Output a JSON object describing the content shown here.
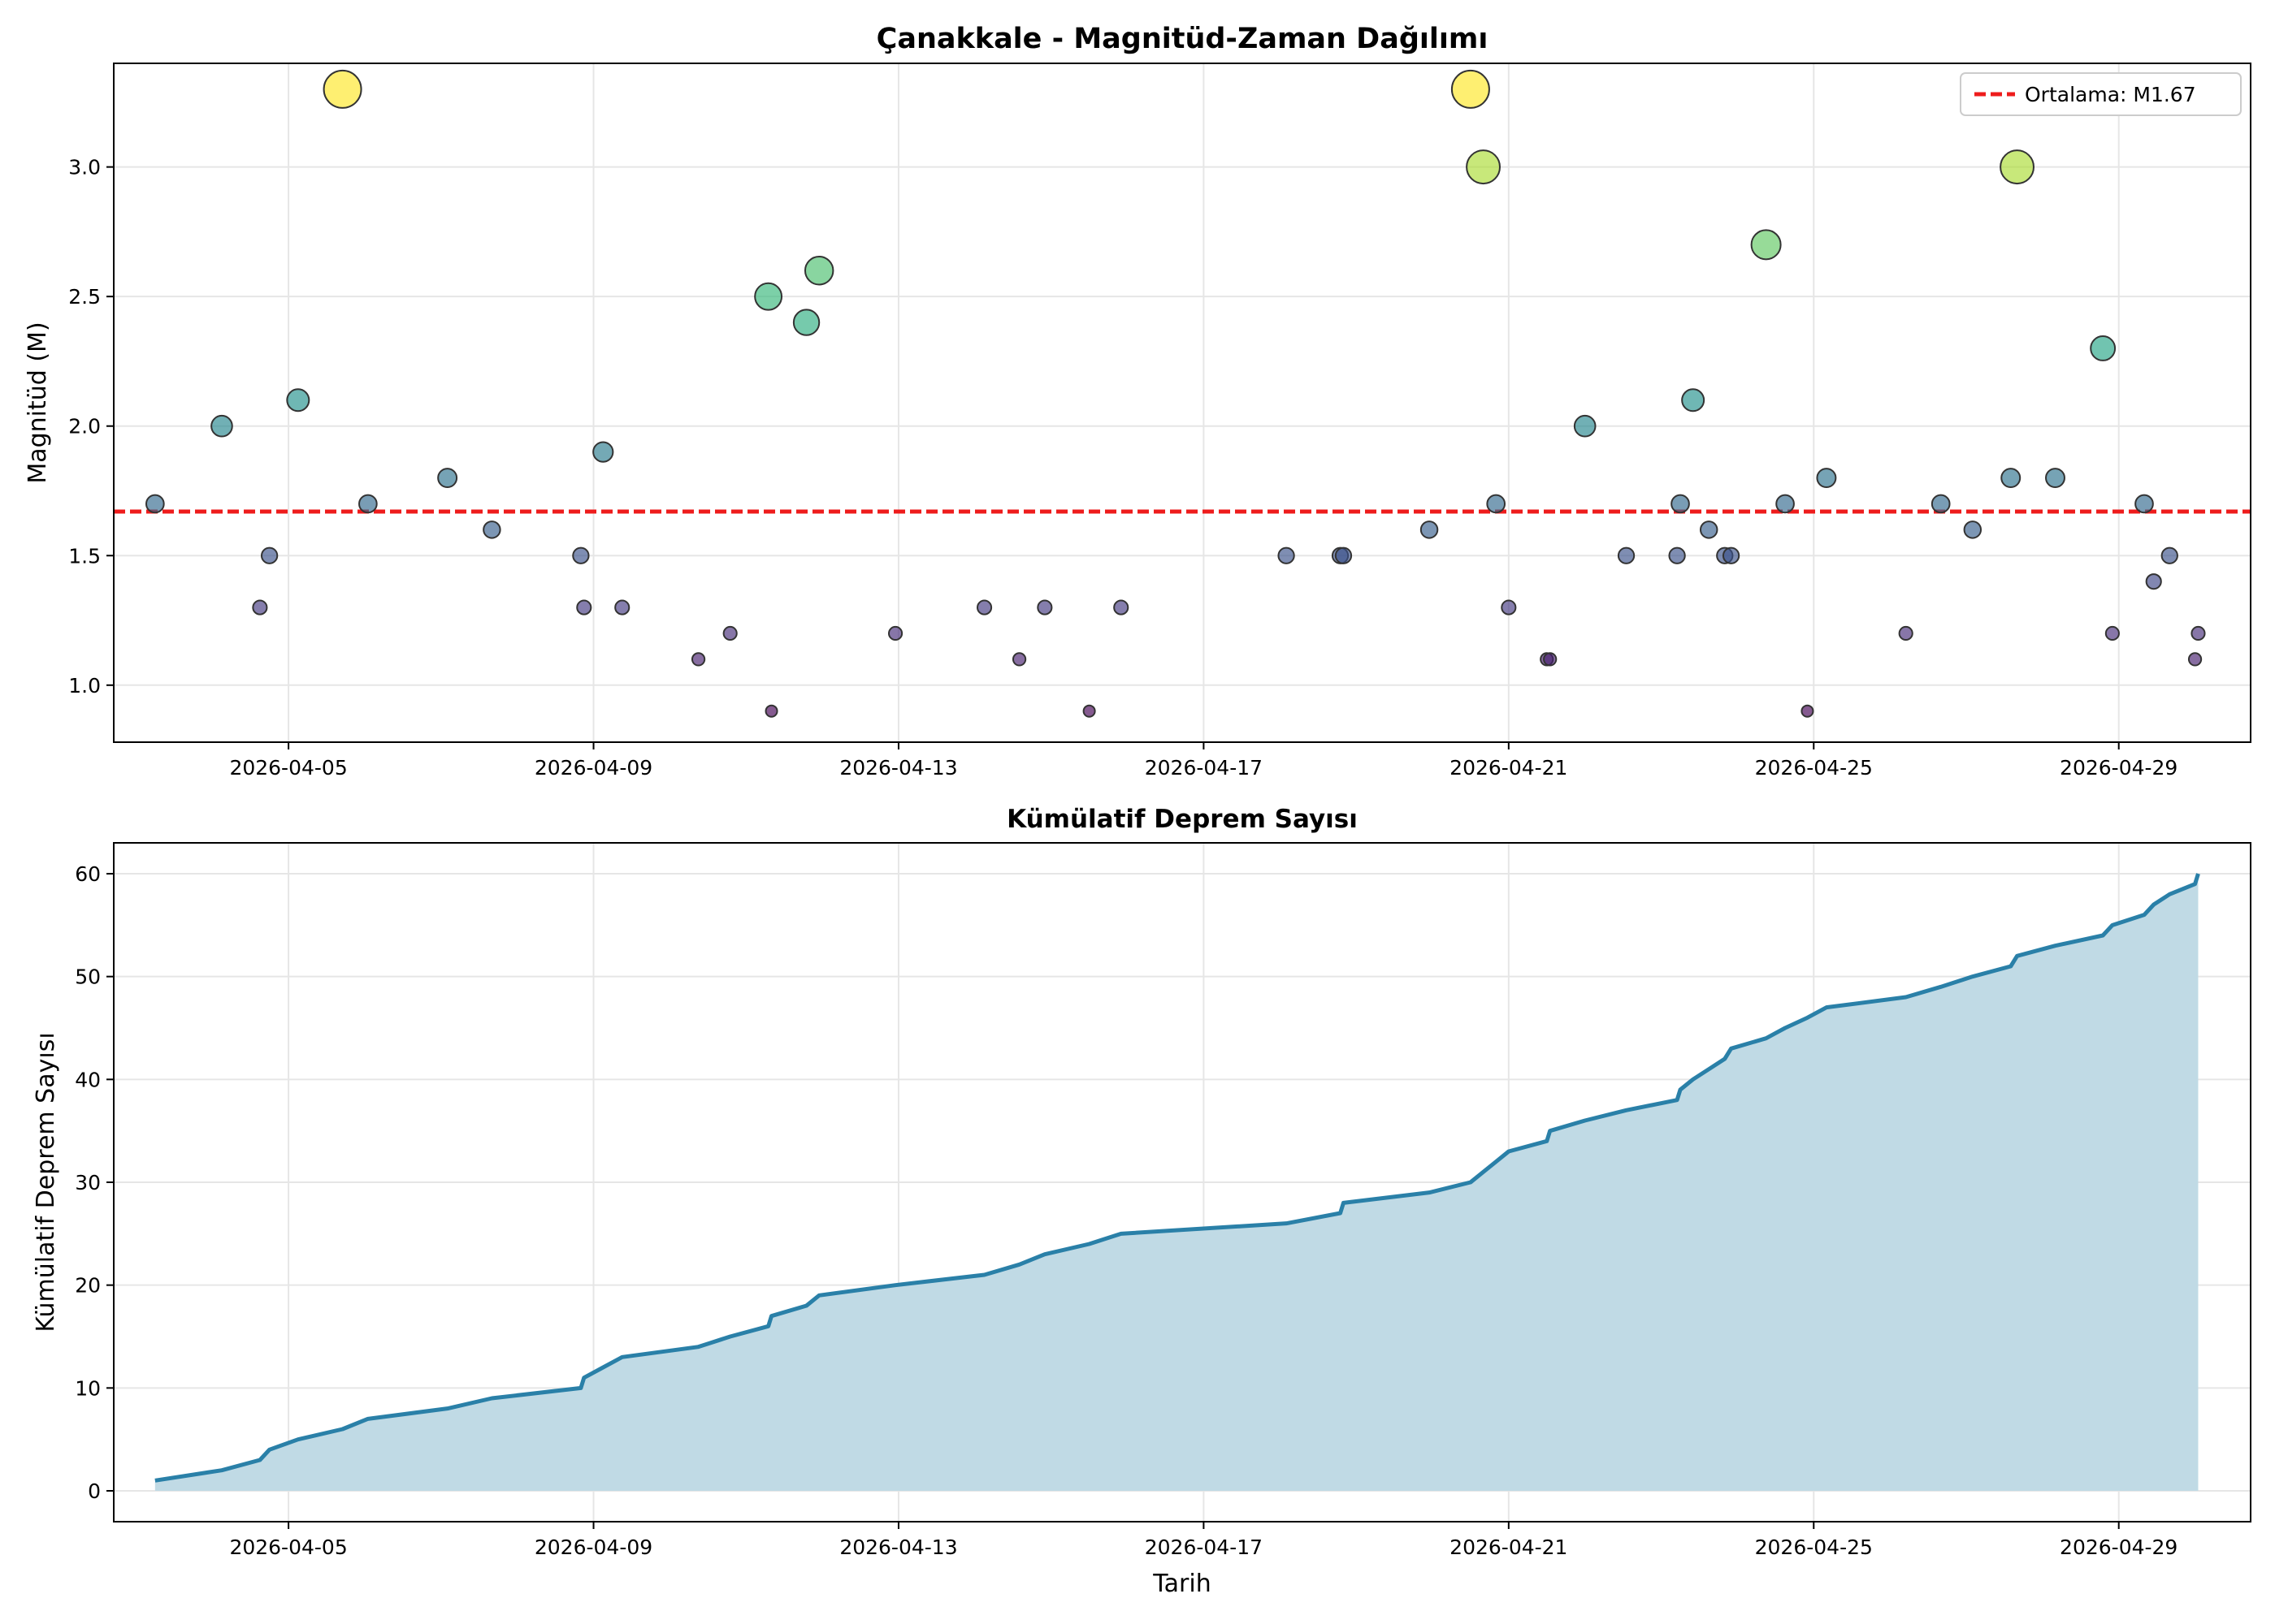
{
  "colors": {
    "mean_line": "#ee1c1c",
    "cumulative_line": "#2a80a8",
    "cumulative_fill": "#c0dae5",
    "grid": "#e6e6e6",
    "marker_edge": "#333333"
  },
  "chart_data": [
    {
      "type": "scatter",
      "title": "Çanakkale - Magnitüd-Zaman Dağılımı",
      "xlabel": "",
      "ylabel": "Magnitüd (M)",
      "x_ticks": [
        "2026-04-05",
        "2026-04-09",
        "2026-04-13",
        "2026-04-17",
        "2026-04-21",
        "2026-04-25",
        "2026-04-29"
      ],
      "y_ticks": [
        "1.0",
        "1.5",
        "2.0",
        "2.5",
        "3.0"
      ],
      "xlim": [
        "2026-04-02 17:00",
        "2026-04-30 17:30"
      ],
      "ylim": [
        0.78,
        3.4
      ],
      "grid": true,
      "legend_position": "top-right",
      "color_scale": "viridis, magnitude 0.9 to 3.3",
      "mean_line": {
        "label": "Ortalama: M1.67",
        "value": 1.67
      },
      "points": [
        {
          "x": "2026-04-03 06:00",
          "y": 1.7
        },
        {
          "x": "2026-04-04 03:00",
          "y": 2.0
        },
        {
          "x": "2026-04-04 15:00",
          "y": 1.3
        },
        {
          "x": "2026-04-04 18:00",
          "y": 1.5
        },
        {
          "x": "2026-04-05 03:00",
          "y": 2.1
        },
        {
          "x": "2026-04-05 17:00",
          "y": 3.3
        },
        {
          "x": "2026-04-06 01:00",
          "y": 1.7
        },
        {
          "x": "2026-04-07 02:00",
          "y": 1.8
        },
        {
          "x": "2026-04-07 16:00",
          "y": 1.6
        },
        {
          "x": "2026-04-08 20:00",
          "y": 1.5
        },
        {
          "x": "2026-04-08 21:00",
          "y": 1.3
        },
        {
          "x": "2026-04-09 03:00",
          "y": 1.9
        },
        {
          "x": "2026-04-09 09:00",
          "y": 1.3
        },
        {
          "x": "2026-04-10 09:00",
          "y": 1.1
        },
        {
          "x": "2026-04-10 19:00",
          "y": 1.2
        },
        {
          "x": "2026-04-11 07:00",
          "y": 2.5
        },
        {
          "x": "2026-04-11 08:00",
          "y": 0.9
        },
        {
          "x": "2026-04-11 19:00",
          "y": 2.4
        },
        {
          "x": "2026-04-11 23:00",
          "y": 2.6
        },
        {
          "x": "2026-04-12 23:00",
          "y": 1.2
        },
        {
          "x": "2026-04-14 03:00",
          "y": 1.3
        },
        {
          "x": "2026-04-14 14:00",
          "y": 1.1
        },
        {
          "x": "2026-04-14 22:00",
          "y": 1.3
        },
        {
          "x": "2026-04-15 12:00",
          "y": 0.9
        },
        {
          "x": "2026-04-15 22:00",
          "y": 1.3
        },
        {
          "x": "2026-04-18 02:00",
          "y": 1.5
        },
        {
          "x": "2026-04-18 19:00",
          "y": 1.5
        },
        {
          "x": "2026-04-18 20:00",
          "y": 1.5
        },
        {
          "x": "2026-04-19 23:00",
          "y": 1.6
        },
        {
          "x": "2026-04-20 12:00",
          "y": 3.3
        },
        {
          "x": "2026-04-20 16:00",
          "y": 3.0
        },
        {
          "x": "2026-04-20 20:00",
          "y": 1.7
        },
        {
          "x": "2026-04-21 00:00",
          "y": 1.3
        },
        {
          "x": "2026-04-21 12:00",
          "y": 1.1
        },
        {
          "x": "2026-04-21 13:00",
          "y": 1.1
        },
        {
          "x": "2026-04-22 00:00",
          "y": 2.0
        },
        {
          "x": "2026-04-22 13:00",
          "y": 1.5
        },
        {
          "x": "2026-04-23 05:00",
          "y": 1.5
        },
        {
          "x": "2026-04-23 06:00",
          "y": 1.7
        },
        {
          "x": "2026-04-23 10:00",
          "y": 2.1
        },
        {
          "x": "2026-04-23 15:00",
          "y": 1.6
        },
        {
          "x": "2026-04-23 20:00",
          "y": 1.5
        },
        {
          "x": "2026-04-23 22:00",
          "y": 1.5
        },
        {
          "x": "2026-04-24 09:00",
          "y": 2.7
        },
        {
          "x": "2026-04-24 15:00",
          "y": 1.7
        },
        {
          "x": "2026-04-24 22:00",
          "y": 0.9
        },
        {
          "x": "2026-04-25 04:00",
          "y": 1.8
        },
        {
          "x": "2026-04-26 05:00",
          "y": 1.2
        },
        {
          "x": "2026-04-26 16:00",
          "y": 1.7
        },
        {
          "x": "2026-04-27 02:00",
          "y": 1.6
        },
        {
          "x": "2026-04-27 14:00",
          "y": 1.8
        },
        {
          "x": "2026-04-27 16:00",
          "y": 3.0
        },
        {
          "x": "2026-04-28 04:00",
          "y": 1.8
        },
        {
          "x": "2026-04-28 19:00",
          "y": 2.3
        },
        {
          "x": "2026-04-28 22:00",
          "y": 1.2
        },
        {
          "x": "2026-04-29 08:00",
          "y": 1.7
        },
        {
          "x": "2026-04-29 11:00",
          "y": 1.4
        },
        {
          "x": "2026-04-29 16:00",
          "y": 1.5
        },
        {
          "x": "2026-04-30 00:00",
          "y": 1.1
        },
        {
          "x": "2026-04-30 01:00",
          "y": 1.2
        }
      ]
    },
    {
      "type": "area",
      "title": "Kümülatif Deprem Sayısı",
      "xlabel": "Tarih",
      "ylabel": "Kümülatif Deprem Sayısı",
      "x_ticks": [
        "2026-04-05",
        "2026-04-09",
        "2026-04-13",
        "2026-04-17",
        "2026-04-21",
        "2026-04-25",
        "2026-04-29"
      ],
      "y_ticks": [
        "0",
        "10",
        "20",
        "30",
        "40",
        "50",
        "60"
      ],
      "xlim": [
        "2026-04-02 17:00",
        "2026-04-30 17:30"
      ],
      "ylim": [
        -3,
        63
      ],
      "grid": true,
      "series": [
        {
          "x": [
            "2026-04-03 06:00",
            "2026-04-04 03:00",
            "2026-04-04 15:00",
            "2026-04-04 18:00",
            "2026-04-05 03:00",
            "2026-04-05 17:00",
            "2026-04-06 01:00",
            "2026-04-07 02:00",
            "2026-04-07 16:00",
            "2026-04-08 20:00",
            "2026-04-08 21:00",
            "2026-04-09 03:00",
            "2026-04-09 09:00",
            "2026-04-10 09:00",
            "2026-04-10 19:00",
            "2026-04-11 07:00",
            "2026-04-11 08:00",
            "2026-04-11 19:00",
            "2026-04-11 23:00",
            "2026-04-12 23:00",
            "2026-04-14 03:00",
            "2026-04-14 14:00",
            "2026-04-14 22:00",
            "2026-04-15 12:00",
            "2026-04-15 22:00",
            "2026-04-18 02:00",
            "2026-04-18 19:00",
            "2026-04-18 20:00",
            "2026-04-19 23:00",
            "2026-04-20 12:00",
            "2026-04-20 16:00",
            "2026-04-20 20:00",
            "2026-04-21 00:00",
            "2026-04-21 12:00",
            "2026-04-21 13:00",
            "2026-04-22 00:00",
            "2026-04-22 13:00",
            "2026-04-23 05:00",
            "2026-04-23 06:00",
            "2026-04-23 10:00",
            "2026-04-23 15:00",
            "2026-04-23 20:00",
            "2026-04-23 22:00",
            "2026-04-24 09:00",
            "2026-04-24 15:00",
            "2026-04-24 22:00",
            "2026-04-25 04:00",
            "2026-04-26 05:00",
            "2026-04-26 16:00",
            "2026-04-27 02:00",
            "2026-04-27 14:00",
            "2026-04-27 16:00",
            "2026-04-28 04:00",
            "2026-04-28 19:00",
            "2026-04-28 22:00",
            "2026-04-29 08:00",
            "2026-04-29 11:00",
            "2026-04-29 16:00",
            "2026-04-30 00:00",
            "2026-04-30 01:00"
          ],
          "values": [
            1,
            2,
            3,
            4,
            5,
            6,
            7,
            8,
            9,
            10,
            11,
            12,
            13,
            14,
            15,
            16,
            17,
            18,
            19,
            20,
            21,
            22,
            23,
            24,
            25,
            26,
            27,
            28,
            29,
            30,
            31,
            32,
            33,
            34,
            35,
            36,
            37,
            38,
            39,
            40,
            41,
            42,
            43,
            44,
            45,
            46,
            47,
            48,
            49,
            50,
            51,
            52,
            53,
            54,
            55,
            56,
            57,
            58,
            59,
            60
          ]
        }
      ]
    }
  ]
}
